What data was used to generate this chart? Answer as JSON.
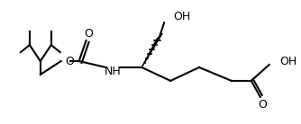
{
  "bg_color": "#ffffff",
  "line_color": "#000000",
  "line_width": 1.5,
  "font_size": 9,
  "atoms": {
    "O_label": "O",
    "NH_label": "NH",
    "OH_top": "OH",
    "OH_right": "OH",
    "O_double": "O"
  }
}
